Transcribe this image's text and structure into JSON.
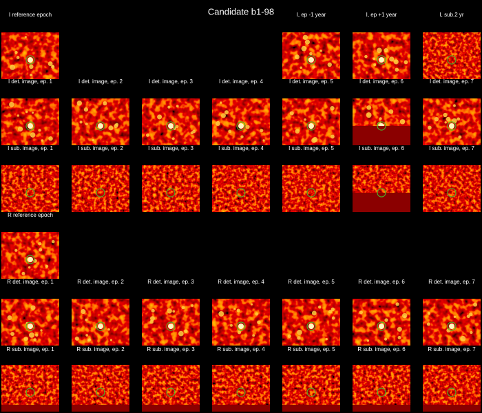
{
  "title": "Candidate b1-98",
  "rows": [
    {
      "labels": [
        "I reference epoch",
        null,
        null,
        null,
        "I, ep -1 year",
        "I, ep +1 year",
        "I, sub.2 yr"
      ]
    },
    {
      "labels": [
        "I det. image, ep. 1",
        "I det. image, ep. 2",
        "I det. image, ep. 3",
        "I det. image, ep. 4",
        "I det. image, ep. 5",
        "I det. image, ep. 6",
        "I det. image, ep. 7"
      ]
    },
    {
      "labels": [
        "I sub. image, ep. 1",
        "I sub. image, ep. 2",
        "I sub. image, ep. 3",
        "I sub. image, ep. 4",
        "I sub. image, ep. 5",
        "I sub. image, ep. 6",
        "I sub. image, ep. 7"
      ]
    },
    {
      "labels": [
        "R reference epoch"
      ]
    },
    {
      "labels": [
        "R det. image, ep. 1",
        "R det. image, ep. 2",
        "R det. image, ep. 3",
        "R det. image, ep. 4",
        "R det. image, ep. 5",
        "R det. image, ep. 6",
        "R det. image, ep. 7"
      ]
    },
    {
      "labels": [
        "R sub. image, ep. 1",
        "R sub. image, ep. 2",
        "R sub. image, ep. 3",
        "R sub. image, ep. 4",
        "R sub. image, ep. 5",
        "R sub. image, ep. 6",
        "R sub. image, ep. 7"
      ]
    }
  ]
}
